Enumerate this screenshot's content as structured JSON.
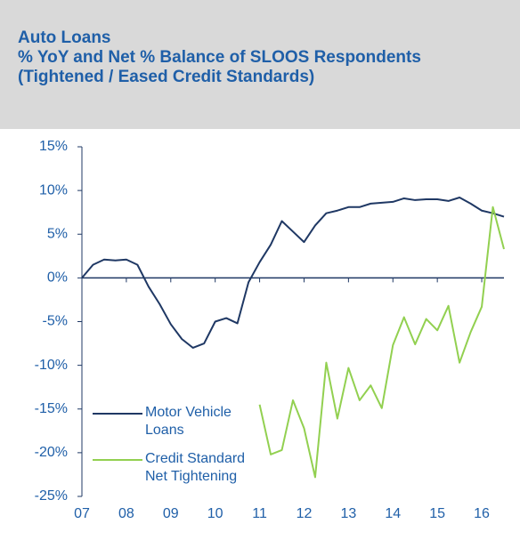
{
  "chart_data": {
    "type": "line",
    "title": "Auto Loans",
    "subtitle": "% YoY and Net % Balance of SLOOS Respondents (Tightened / Eased Credit Standards)",
    "x": [
      7,
      7.25,
      7.5,
      7.75,
      8,
      8.25,
      8.5,
      8.75,
      9,
      9.25,
      9.5,
      9.75,
      10,
      10.25,
      10.5,
      10.75,
      11,
      11.25,
      11.5,
      11.75,
      12,
      12.25,
      12.5,
      12.75,
      13,
      13.25,
      13.5,
      13.75,
      14,
      14.25,
      14.5,
      14.75,
      15,
      15.25,
      15.5,
      15.75,
      16,
      16.25,
      16.5
    ],
    "series": [
      {
        "name": "Motor Vehicle Loans",
        "color": "#1f3864",
        "values": [
          0,
          1.5,
          2.1,
          2.0,
          2.1,
          1.5,
          -1,
          -3,
          -5.3,
          -7,
          -8,
          -7.5,
          -5,
          -4.6,
          -5.2,
          -0.5,
          1.8,
          3.8,
          6.5,
          5.3,
          4.1,
          6,
          7.4,
          7.7,
          8.1,
          8.1,
          8.5,
          8.6,
          8.7,
          9.1,
          8.9,
          9.0,
          9.0,
          8.8,
          9.2,
          8.5,
          7.7,
          7.4,
          7.0
        ]
      },
      {
        "name": "Credit Standard Net Tightening",
        "color": "#92d050",
        "values": [
          null,
          null,
          null,
          null,
          null,
          null,
          null,
          null,
          null,
          null,
          null,
          null,
          null,
          null,
          null,
          null,
          -14.5,
          -20.2,
          -19.7,
          -14,
          -17.2,
          -22.8,
          -9.7,
          -16.1,
          -10.3,
          -14,
          -12.3,
          -14.9,
          -7.7,
          -4.5,
          -7.6,
          -4.7,
          -6,
          -3.2,
          -9.7,
          -6.2,
          -3.3,
          8.1,
          3.3
        ]
      }
    ],
    "xlim": [
      7,
      16.5
    ],
    "xticks": [
      {
        "value": 7,
        "label": "07"
      },
      {
        "value": 8,
        "label": "08"
      },
      {
        "value": 9,
        "label": "09"
      },
      {
        "value": 10,
        "label": "10"
      },
      {
        "value": 11,
        "label": "11"
      },
      {
        "value": 12,
        "label": "12"
      },
      {
        "value": 13,
        "label": "13"
      },
      {
        "value": 14,
        "label": "14"
      },
      {
        "value": 15,
        "label": "15"
      },
      {
        "value": 16,
        "label": "16"
      }
    ],
    "ylim": [
      -25,
      15
    ],
    "yticks": [
      {
        "value": 15,
        "label": "15%"
      },
      {
        "value": 10,
        "label": "10%"
      },
      {
        "value": 5,
        "label": "5%"
      },
      {
        "value": 0,
        "label": "0%"
      },
      {
        "value": -5,
        "label": "-5%"
      },
      {
        "value": -10,
        "label": "-10%"
      },
      {
        "value": -15,
        "label": "-15%"
      },
      {
        "value": -20,
        "label": "-20%"
      },
      {
        "value": -25,
        "label": "-25%"
      }
    ],
    "grid": false
  }
}
